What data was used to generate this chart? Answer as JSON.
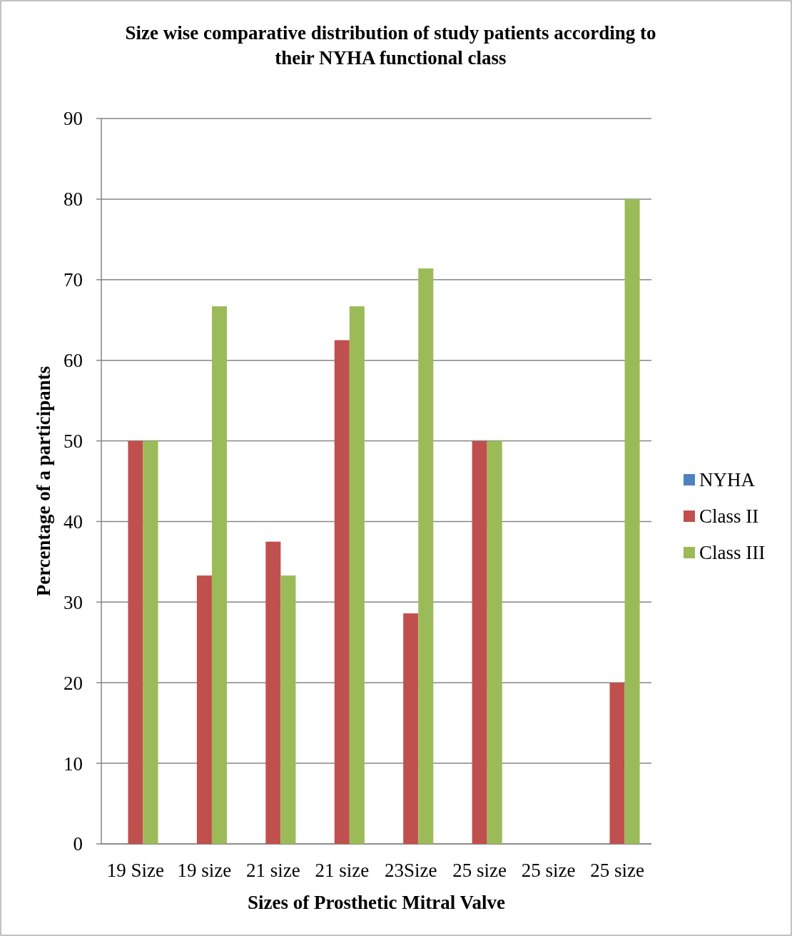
{
  "chart_data": {
    "type": "bar",
    "title": "Size wise comparative distribution of study patients according to their NYHA functional class",
    "xlabel": "Sizes of Prosthetic Mitral Valve",
    "ylabel": "Percentage of a participants",
    "categories": [
      "19 Size",
      "19 size",
      "21 size",
      "21 size",
      "23Size",
      "25 size",
      "25 size",
      "25 size"
    ],
    "series": [
      {
        "name": "NYHA",
        "color": "#4f81bd",
        "values": [
          null,
          null,
          null,
          null,
          null,
          null,
          null,
          null
        ]
      },
      {
        "name": "Class II",
        "color": "#c0504d",
        "values": [
          50,
          33.3,
          37.5,
          62.5,
          28.6,
          50,
          null,
          20
        ]
      },
      {
        "name": "Class III",
        "color": "#9bbb59",
        "values": [
          50,
          66.7,
          33.3,
          66.7,
          71.4,
          50,
          null,
          80
        ]
      }
    ],
    "ylim": [
      0,
      90
    ],
    "yticks": [
      0,
      10,
      20,
      30,
      40,
      50,
      60,
      70,
      80,
      90
    ],
    "grid": "y",
    "legend": "right"
  }
}
